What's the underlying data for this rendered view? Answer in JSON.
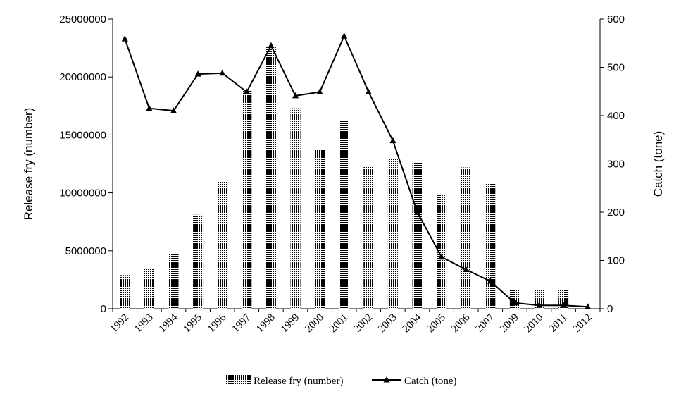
{
  "chart_data": {
    "type": "bar+line",
    "categories": [
      "1992",
      "1993",
      "1994",
      "1995",
      "1996",
      "1997",
      "1998",
      "1999",
      "2000",
      "2001",
      "2002",
      "2003",
      "2004",
      "2005",
      "2006",
      "2007",
      "2009",
      "2010",
      "2011",
      "2012"
    ],
    "series": [
      {
        "name": "Release fry (number)",
        "type": "bar",
        "axis": "left",
        "color": "#000000",
        "values": [
          2900000,
          3500000,
          4700000,
          8100000,
          11000000,
          18800000,
          22600000,
          17300000,
          13700000,
          16300000,
          12300000,
          13000000,
          12600000,
          9900000,
          12200000,
          10800000,
          1600000,
          1700000,
          1600000,
          null
        ]
      },
      {
        "name": "Catch (tone)",
        "type": "line",
        "axis": "right",
        "marker": "triangle",
        "color": "#000000",
        "values": [
          559,
          415,
          410,
          486,
          488,
          449,
          545,
          441,
          449,
          565,
          449,
          348,
          200,
          107,
          81,
          57,
          12,
          7,
          7,
          4
        ]
      }
    ],
    "ylabel": "Release fry (number)",
    "y2label": "Catch (tone)",
    "xlabel": "",
    "title": "",
    "ylim": [
      0,
      25000000
    ],
    "y2lim": [
      0,
      600
    ],
    "yticks": [
      "0",
      "5000000",
      "10000000",
      "15000000",
      "20000000",
      "25000000"
    ],
    "y2ticks": [
      "0",
      "100",
      "200",
      "300",
      "400",
      "500",
      "600"
    ],
    "grid": false,
    "legend": "bottom"
  }
}
